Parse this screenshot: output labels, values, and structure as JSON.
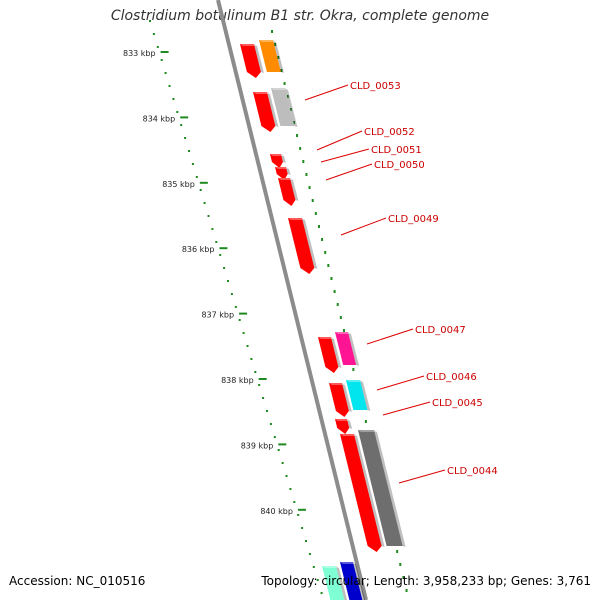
{
  "title": "Clostridium botulinum B1 str. Okra, complete genome",
  "footer": {
    "accession": "Accession: NC_010516",
    "summary": "Topology: circular; Length: 3,958,233 bp; Genes: 3,761"
  },
  "scale": {
    "color": "#1f8a1f",
    "ticks": [
      {
        "label": "833 kbp",
        "kbp": 833
      },
      {
        "label": "834 kbp",
        "kbp": 834
      },
      {
        "label": "835 kbp",
        "kbp": 835
      },
      {
        "label": "836 kbp",
        "kbp": 836
      },
      {
        "label": "837 kbp",
        "kbp": 837
      },
      {
        "label": "838 kbp",
        "kbp": 838
      },
      {
        "label": "839 kbp",
        "kbp": 839
      },
      {
        "label": "840 kbp",
        "kbp": 840
      }
    ]
  },
  "colors": {
    "backbone": "#8c8c8c",
    "label_text": "#cc0000",
    "label_line": "#dd0000",
    "track_tick": "#1f8a1f"
  },
  "gene_labels": [
    {
      "name": "CLD_0053"
    },
    {
      "name": "CLD_0052"
    },
    {
      "name": "CLD_0051"
    },
    {
      "name": "CLD_0050"
    },
    {
      "name": "CLD_0049"
    },
    {
      "name": "CLD_0047"
    },
    {
      "name": "CLD_0046"
    },
    {
      "name": "CLD_0045"
    },
    {
      "name": "CLD_0044"
    }
  ]
}
